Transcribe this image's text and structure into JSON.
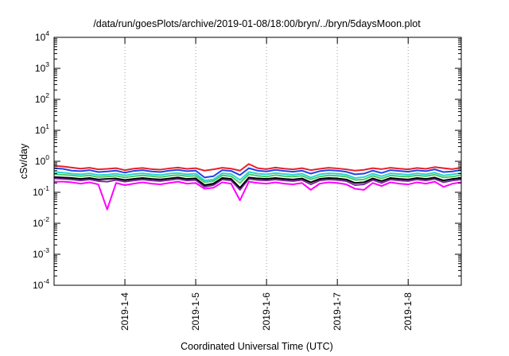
{
  "chart_data": {
    "type": "line",
    "title": "/data/run/goesPlots/archive/2019-01-08/18:00/bryn/../bryn/5daysMoon.plot",
    "xlabel": "Coordinated Universal Time (UTC)",
    "ylabel": "cSv/day",
    "yscale": "log",
    "xlim": [
      "2019-01-03 00:00",
      "2019-01-08 18:00"
    ],
    "ylim": [
      0.0001,
      10000
    ],
    "grid": "vertical",
    "legend": "none",
    "xticks": [
      {
        "date": "2019-01-04 00:00",
        "label": "2019-1-4"
      },
      {
        "date": "2019-01-05 00:00",
        "label": "2019-1-5"
      },
      {
        "date": "2019-01-06 00:00",
        "label": "2019-1-6"
      },
      {
        "date": "2019-01-07 00:00",
        "label": "2019-1-7"
      },
      {
        "date": "2019-01-08 00:00",
        "label": "2019-1-8"
      }
    ],
    "yticks": [
      {
        "value": 10000,
        "base": "10",
        "exp": "4"
      },
      {
        "value": 1000,
        "base": "10",
        "exp": "3"
      },
      {
        "value": 100,
        "base": "10",
        "exp": "2"
      },
      {
        "value": 10,
        "base": "10",
        "exp": "1"
      },
      {
        "value": 1,
        "base": "10",
        "exp": "0"
      },
      {
        "value": 0.1,
        "base": "10",
        "exp": "-1"
      },
      {
        "value": 0.01,
        "base": "10",
        "exp": "-2"
      },
      {
        "value": 0.001,
        "base": "10",
        "exp": "-3"
      },
      {
        "value": 0.0001,
        "base": "10",
        "exp": "-4"
      }
    ],
    "x": [
      "2019-01-03 00:00",
      "2019-01-03 03:00",
      "2019-01-03 06:00",
      "2019-01-03 09:00",
      "2019-01-03 12:00",
      "2019-01-03 15:00",
      "2019-01-03 18:00",
      "2019-01-03 21:00",
      "2019-01-04 00:00",
      "2019-01-04 03:00",
      "2019-01-04 06:00",
      "2019-01-04 09:00",
      "2019-01-04 12:00",
      "2019-01-04 15:00",
      "2019-01-04 18:00",
      "2019-01-04 21:00",
      "2019-01-05 00:00",
      "2019-01-05 03:00",
      "2019-01-05 06:00",
      "2019-01-05 09:00",
      "2019-01-05 12:00",
      "2019-01-05 15:00",
      "2019-01-05 18:00",
      "2019-01-05 21:00",
      "2019-01-06 00:00",
      "2019-01-06 03:00",
      "2019-01-06 06:00",
      "2019-01-06 09:00",
      "2019-01-06 12:00",
      "2019-01-06 15:00",
      "2019-01-06 18:00",
      "2019-01-06 21:00",
      "2019-01-07 00:00",
      "2019-01-07 03:00",
      "2019-01-07 06:00",
      "2019-01-07 09:00",
      "2019-01-07 12:00",
      "2019-01-07 15:00",
      "2019-01-07 18:00",
      "2019-01-07 21:00",
      "2019-01-08 00:00",
      "2019-01-08 03:00",
      "2019-01-08 06:00",
      "2019-01-08 09:00",
      "2019-01-08 12:00",
      "2019-01-08 15:00",
      "2019-01-08 18:00"
    ],
    "series": [
      {
        "color": "#ff00ff",
        "values": [
          0.22,
          0.22,
          0.21,
          0.19,
          0.21,
          0.18,
          0.028,
          0.2,
          0.17,
          0.19,
          0.21,
          0.19,
          0.18,
          0.2,
          0.22,
          0.19,
          0.2,
          0.13,
          0.14,
          0.21,
          0.19,
          0.055,
          0.22,
          0.2,
          0.19,
          0.21,
          0.19,
          0.18,
          0.2,
          0.12,
          0.19,
          0.21,
          0.2,
          0.18,
          0.13,
          0.12,
          0.2,
          0.16,
          0.21,
          0.19,
          0.18,
          0.21,
          0.19,
          0.22,
          0.15,
          0.19,
          0.21
        ]
      },
      {
        "color": "#7a2a9c",
        "values": [
          0.28,
          0.27,
          0.26,
          0.24,
          0.26,
          0.23,
          0.22,
          0.25,
          0.22,
          0.24,
          0.26,
          0.24,
          0.23,
          0.25,
          0.27,
          0.24,
          0.25,
          0.15,
          0.17,
          0.26,
          0.24,
          0.12,
          0.27,
          0.25,
          0.24,
          0.26,
          0.24,
          0.23,
          0.25,
          0.18,
          0.24,
          0.26,
          0.25,
          0.23,
          0.17,
          0.18,
          0.25,
          0.2,
          0.26,
          0.24,
          0.23,
          0.26,
          0.24,
          0.27,
          0.21,
          0.24,
          0.26
        ]
      },
      {
        "color": "#000000",
        "values": [
          0.31,
          0.3,
          0.29,
          0.27,
          0.29,
          0.26,
          0.27,
          0.28,
          0.25,
          0.27,
          0.29,
          0.27,
          0.26,
          0.28,
          0.3,
          0.27,
          0.28,
          0.17,
          0.19,
          0.29,
          0.27,
          0.14,
          0.3,
          0.28,
          0.27,
          0.29,
          0.27,
          0.26,
          0.28,
          0.21,
          0.27,
          0.29,
          0.28,
          0.26,
          0.2,
          0.21,
          0.28,
          0.23,
          0.29,
          0.27,
          0.26,
          0.29,
          0.27,
          0.3,
          0.24,
          0.27,
          0.29
        ]
      },
      {
        "color": "#4cc86a",
        "values": [
          0.38,
          0.37,
          0.35,
          0.33,
          0.35,
          0.31,
          0.32,
          0.34,
          0.3,
          0.33,
          0.35,
          0.33,
          0.31,
          0.34,
          0.36,
          0.33,
          0.34,
          0.21,
          0.23,
          0.35,
          0.33,
          0.2,
          0.38,
          0.34,
          0.32,
          0.36,
          0.33,
          0.32,
          0.34,
          0.26,
          0.32,
          0.35,
          0.34,
          0.32,
          0.25,
          0.26,
          0.34,
          0.28,
          0.35,
          0.33,
          0.32,
          0.35,
          0.33,
          0.37,
          0.3,
          0.32,
          0.36
        ]
      },
      {
        "color": "#2cd4d0",
        "values": [
          0.45,
          0.43,
          0.4,
          0.38,
          0.41,
          0.36,
          0.37,
          0.4,
          0.35,
          0.39,
          0.41,
          0.38,
          0.36,
          0.4,
          0.42,
          0.38,
          0.4,
          0.24,
          0.26,
          0.41,
          0.39,
          0.25,
          0.45,
          0.4,
          0.38,
          0.42,
          0.39,
          0.37,
          0.4,
          0.3,
          0.38,
          0.41,
          0.4,
          0.37,
          0.29,
          0.31,
          0.4,
          0.33,
          0.41,
          0.39,
          0.37,
          0.41,
          0.38,
          0.43,
          0.35,
          0.38,
          0.42
        ]
      },
      {
        "color": "#2242e6",
        "values": [
          0.6,
          0.57,
          0.5,
          0.48,
          0.52,
          0.45,
          0.47,
          0.5,
          0.43,
          0.49,
          0.52,
          0.47,
          0.45,
          0.5,
          0.53,
          0.48,
          0.5,
          0.3,
          0.33,
          0.52,
          0.49,
          0.36,
          0.6,
          0.5,
          0.47,
          0.53,
          0.49,
          0.46,
          0.5,
          0.4,
          0.48,
          0.52,
          0.5,
          0.46,
          0.38,
          0.4,
          0.5,
          0.42,
          0.52,
          0.49,
          0.46,
          0.51,
          0.48,
          0.55,
          0.45,
          0.47,
          0.53
        ]
      },
      {
        "color": "#e6202a",
        "values": [
          0.72,
          0.68,
          0.63,
          0.58,
          0.62,
          0.55,
          0.57,
          0.6,
          0.52,
          0.58,
          0.61,
          0.56,
          0.54,
          0.59,
          0.63,
          0.57,
          0.6,
          0.5,
          0.55,
          0.62,
          0.58,
          0.5,
          0.82,
          0.6,
          0.56,
          0.63,
          0.58,
          0.55,
          0.6,
          0.52,
          0.57,
          0.62,
          0.59,
          0.55,
          0.5,
          0.53,
          0.6,
          0.56,
          0.62,
          0.58,
          0.55,
          0.61,
          0.57,
          0.65,
          0.6,
          0.56,
          0.63
        ]
      }
    ]
  }
}
